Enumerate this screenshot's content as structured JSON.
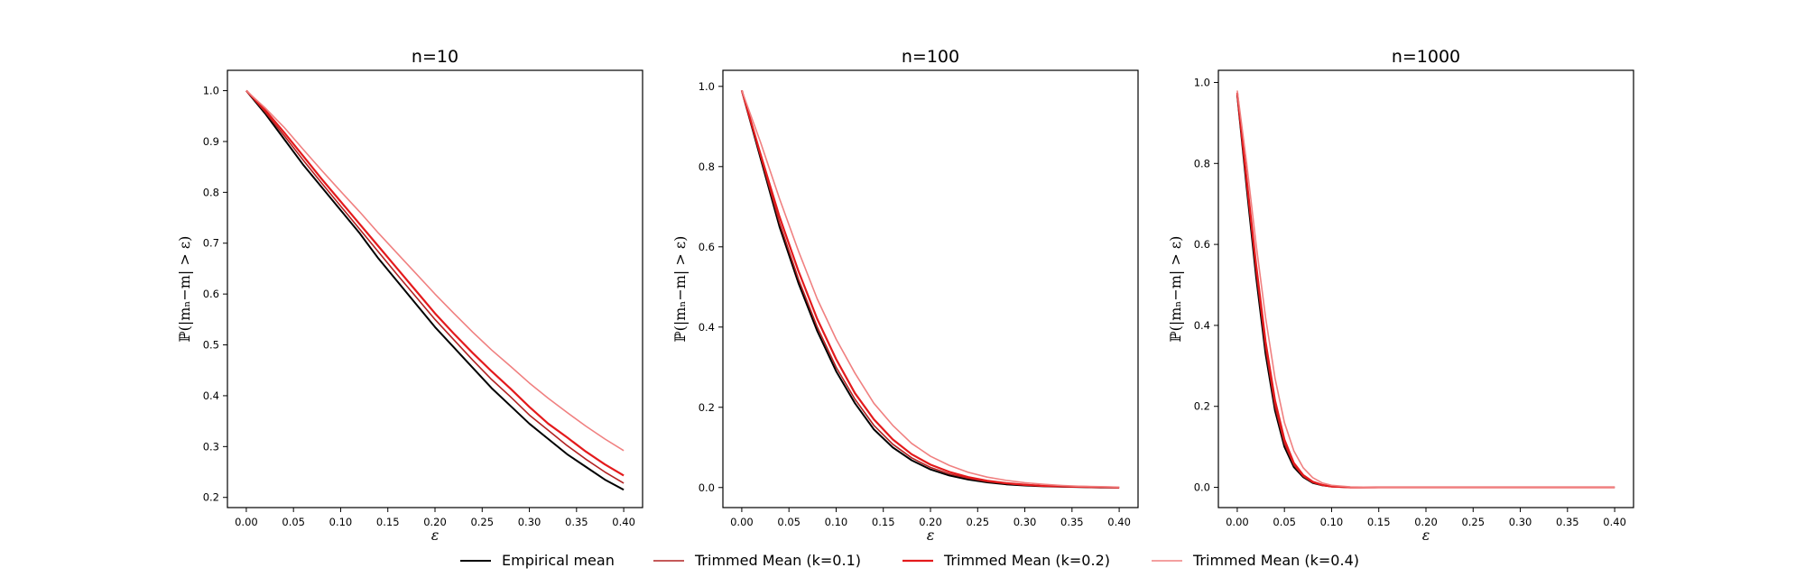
{
  "chart_data": [
    {
      "type": "line",
      "title": "n=10",
      "xlabel": "ε",
      "ylabel": "ℙ(|mₙ−m| > ε)",
      "xlim": [
        -0.02,
        0.42
      ],
      "ylim": [
        0.18,
        1.04
      ],
      "xticks": [
        "0.00",
        "0.05",
        "0.10",
        "0.15",
        "0.20",
        "0.25",
        "0.30",
        "0.35",
        "0.40"
      ],
      "yticks": [
        "0.2",
        "0.3",
        "0.4",
        "0.5",
        "0.6",
        "0.7",
        "0.8",
        "0.9",
        "1.0"
      ],
      "x": [
        0.0,
        0.02,
        0.04,
        0.06,
        0.08,
        0.1,
        0.12,
        0.14,
        0.16,
        0.18,
        0.2,
        0.22,
        0.24,
        0.26,
        0.28,
        0.3,
        0.32,
        0.34,
        0.36,
        0.38,
        0.4
      ],
      "series": [
        {
          "name": "Empirical mean",
          "color": "#000000",
          "values": [
            1.0,
            0.955,
            0.905,
            0.855,
            0.81,
            0.765,
            0.72,
            0.67,
            0.625,
            0.58,
            0.535,
            0.495,
            0.455,
            0.415,
            0.38,
            0.345,
            0.315,
            0.285,
            0.26,
            0.235,
            0.215
          ]
        },
        {
          "name": "Trimmed Mean (k=0.1)",
          "color": "#b22222",
          "values": [
            1.0,
            0.958,
            0.912,
            0.864,
            0.818,
            0.773,
            0.728,
            0.683,
            0.638,
            0.594,
            0.55,
            0.51,
            0.47,
            0.432,
            0.398,
            0.362,
            0.332,
            0.302,
            0.275,
            0.25,
            0.228
          ]
        },
        {
          "name": "Trimmed Mean (k=0.2)",
          "color": "#e41a1c",
          "values": [
            1.0,
            0.962,
            0.918,
            0.872,
            0.826,
            0.782,
            0.738,
            0.694,
            0.65,
            0.606,
            0.562,
            0.522,
            0.484,
            0.448,
            0.414,
            0.378,
            0.345,
            0.318,
            0.29,
            0.265,
            0.243
          ]
        },
        {
          "name": "Trimmed Mean (k=0.4)",
          "color": "#f08080",
          "values": [
            1.0,
            0.966,
            0.928,
            0.885,
            0.843,
            0.802,
            0.762,
            0.72,
            0.68,
            0.64,
            0.6,
            0.562,
            0.525,
            0.49,
            0.458,
            0.425,
            0.395,
            0.367,
            0.34,
            0.315,
            0.292
          ]
        }
      ]
    },
    {
      "type": "line",
      "title": "n=100",
      "xlabel": "ε",
      "ylabel": "ℙ(|mₙ−m| > ε)",
      "xlim": [
        -0.02,
        0.42
      ],
      "ylim": [
        -0.05,
        1.04
      ],
      "xticks": [
        "0.00",
        "0.05",
        "0.10",
        "0.15",
        "0.20",
        "0.25",
        "0.30",
        "0.35",
        "0.40"
      ],
      "yticks": [
        "0.0",
        "0.2",
        "0.4",
        "0.6",
        "0.8",
        "1.0"
      ],
      "x": [
        0.0,
        0.02,
        0.04,
        0.06,
        0.08,
        0.1,
        0.12,
        0.14,
        0.16,
        0.18,
        0.2,
        0.22,
        0.24,
        0.26,
        0.28,
        0.3,
        0.32,
        0.34,
        0.36,
        0.38,
        0.4
      ],
      "series": [
        {
          "name": "Empirical mean",
          "color": "#000000",
          "values": [
            0.99,
            0.82,
            0.65,
            0.51,
            0.39,
            0.29,
            0.21,
            0.145,
            0.1,
            0.068,
            0.045,
            0.03,
            0.02,
            0.013,
            0.008,
            0.005,
            0.003,
            0.002,
            0.001,
            0.0,
            0.0
          ]
        },
        {
          "name": "Trimmed Mean (k=0.1)",
          "color": "#b22222",
          "values": [
            0.99,
            0.825,
            0.66,
            0.52,
            0.4,
            0.3,
            0.22,
            0.155,
            0.108,
            0.074,
            0.05,
            0.034,
            0.023,
            0.015,
            0.01,
            0.006,
            0.004,
            0.002,
            0.001,
            0.0,
            0.0
          ]
        },
        {
          "name": "Trimmed Mean (k=0.2)",
          "color": "#e41a1c",
          "values": [
            0.99,
            0.83,
            0.675,
            0.54,
            0.42,
            0.32,
            0.235,
            0.17,
            0.12,
            0.083,
            0.057,
            0.039,
            0.026,
            0.017,
            0.011,
            0.007,
            0.004,
            0.003,
            0.002,
            0.001,
            0.0
          ]
        },
        {
          "name": "Trimmed Mean (k=0.4)",
          "color": "#f08080",
          "values": [
            0.99,
            0.86,
            0.72,
            0.59,
            0.47,
            0.37,
            0.285,
            0.21,
            0.155,
            0.11,
            0.078,
            0.055,
            0.038,
            0.026,
            0.018,
            0.012,
            0.008,
            0.005,
            0.003,
            0.002,
            0.001
          ]
        }
      ]
    },
    {
      "type": "line",
      "title": "n=1000",
      "xlabel": "ε",
      "ylabel": "ℙ(|mₙ−m| > ε)",
      "xlim": [
        -0.02,
        0.42
      ],
      "ylim": [
        -0.05,
        1.03
      ],
      "xticks": [
        "0.00",
        "0.05",
        "0.10",
        "0.15",
        "0.20",
        "0.25",
        "0.30",
        "0.35",
        "0.40"
      ],
      "yticks": [
        "0.0",
        "0.2",
        "0.4",
        "0.6",
        "0.8",
        "1.0"
      ],
      "x": [
        0.0,
        0.01,
        0.02,
        0.03,
        0.04,
        0.05,
        0.06,
        0.07,
        0.08,
        0.09,
        0.1,
        0.12,
        0.15,
        0.2,
        0.25,
        0.3,
        0.35,
        0.4
      ],
      "series": [
        {
          "name": "Empirical mean",
          "color": "#000000",
          "values": [
            0.97,
            0.74,
            0.52,
            0.33,
            0.19,
            0.1,
            0.05,
            0.025,
            0.011,
            0.005,
            0.002,
            0.0,
            0.0,
            0.0,
            0.0,
            0.0,
            0.0,
            0.0
          ]
        },
        {
          "name": "Trimmed Mean (k=0.1)",
          "color": "#b22222",
          "values": [
            0.97,
            0.75,
            0.535,
            0.345,
            0.2,
            0.108,
            0.055,
            0.027,
            0.012,
            0.005,
            0.002,
            0.0,
            0.0,
            0.0,
            0.0,
            0.0,
            0.0,
            0.0
          ]
        },
        {
          "name": "Trimmed Mean (k=0.2)",
          "color": "#e41a1c",
          "values": [
            0.975,
            0.76,
            0.55,
            0.36,
            0.215,
            0.118,
            0.06,
            0.03,
            0.014,
            0.006,
            0.002,
            0.0,
            0.0,
            0.0,
            0.0,
            0.0,
            0.0,
            0.0
          ]
        },
        {
          "name": "Trimmed Mean (k=0.4)",
          "color": "#f08080",
          "values": [
            0.98,
            0.8,
            0.6,
            0.42,
            0.27,
            0.16,
            0.09,
            0.048,
            0.024,
            0.011,
            0.005,
            0.001,
            0.0,
            0.0,
            0.0,
            0.0,
            0.0,
            0.0
          ]
        }
      ]
    }
  ],
  "legend": {
    "placement": "bottom-center",
    "entries": [
      {
        "label": "Empirical mean",
        "color": "#000000"
      },
      {
        "label": "Trimmed Mean (k=0.1)",
        "color": "#b22222"
      },
      {
        "label": "Trimmed Mean (k=0.2)",
        "color": "#e41a1c"
      },
      {
        "label": "Trimmed Mean (k=0.4)",
        "color": "#f08080"
      }
    ]
  }
}
